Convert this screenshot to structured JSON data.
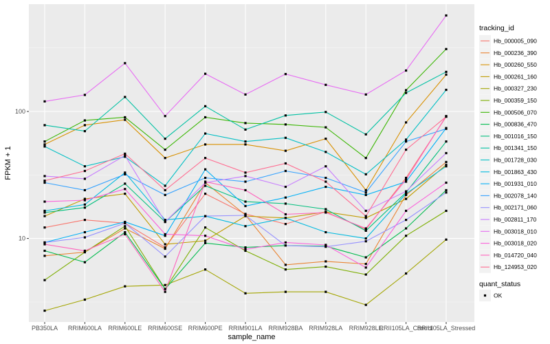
{
  "chart_data": {
    "type": "line",
    "xlabel": "sample_name",
    "ylabel": "FPKM + 1",
    "y_scale": "log10",
    "ylim": [
      2.2,
      700
    ],
    "y_ticks": [
      {
        "value": 10,
        "label": "10"
      },
      {
        "value": 100,
        "label": "100"
      }
    ],
    "grid": true,
    "legend_position": "right",
    "categories": [
      "PB350LA",
      "RRIM600LA",
      "RRIM600LE",
      "RRIM600SE",
      "RRIM600PE",
      "RRIM901LA",
      "RRIM928BA",
      "RRIM928LA",
      "RRIM928LE",
      "RRII105LA_Control",
      "RRII105LA_Stressed"
    ],
    "legend_color": {
      "title": "tracking_id",
      "entries": [
        "Hb_000005_090",
        "Hb_000236_390",
        "Hb_000260_550",
        "Hb_000261_160",
        "Hb_000327_230",
        "Hb_000359_150",
        "Hb_000506_070",
        "Hb_000836_470",
        "Hb_001016_150",
        "Hb_001341_150",
        "Hb_001728_030",
        "Hb_001863_430",
        "Hb_001931_010",
        "Hb_002078_140",
        "Hb_002171_060",
        "Hb_002811_170",
        "Hb_003018_010",
        "Hb_003018_020",
        "Hb_014720_040",
        "Hb_124953_020"
      ]
    },
    "legend_shape": {
      "title": "quant_status",
      "entries": [
        "OK"
      ]
    },
    "series": [
      {
        "name": "Hb_000005_090",
        "color": "#F8766D",
        "values": [
          12.2,
          14.0,
          13.2,
          8.5,
          22.5,
          15.6,
          13.0,
          16.2,
          11.8,
          30.0,
          91.0
        ]
      },
      {
        "name": "Hb_000236_390",
        "color": "#EA8331",
        "values": [
          7.3,
          7.8,
          12.0,
          8.3,
          27.5,
          15.3,
          6.2,
          6.6,
          6.3,
          22.0,
          40.0
        ]
      },
      {
        "name": "Hb_000260_550",
        "color": "#D89000",
        "values": [
          55.0,
          78.0,
          86.0,
          43.0,
          55.0,
          55.0,
          49.0,
          61.0,
          24.0,
          82.0,
          195.0
        ]
      },
      {
        "name": "Hb_000261_160",
        "color": "#C09B00",
        "values": [
          15.0,
          20.5,
          22.5,
          9.0,
          9.6,
          15.0,
          14.5,
          16.2,
          14.5,
          20.5,
          38.0
        ]
      },
      {
        "name": "Hb_000327_230",
        "color": "#A3A500",
        "values": [
          2.7,
          3.3,
          4.2,
          4.3,
          5.7,
          3.7,
          3.8,
          3.8,
          3.0,
          5.3,
          9.8
        ]
      },
      {
        "name": "Hb_000359_150",
        "color": "#7CAE00",
        "values": [
          4.7,
          7.8,
          12.5,
          4.0,
          12.2,
          8.0,
          5.7,
          6.0,
          5.2,
          10.5,
          16.5
        ]
      },
      {
        "name": "Hb_000506_070",
        "color": "#39B600",
        "values": [
          58.0,
          85.0,
          90.0,
          50.0,
          90.0,
          81.0,
          79.0,
          75.0,
          43.0,
          147.0,
          310.0
        ]
      },
      {
        "name": "Hb_000836_470",
        "color": "#00BB4E",
        "values": [
          8.0,
          6.5,
          11.2,
          4.0,
          9.2,
          8.5,
          8.8,
          8.7,
          7.1,
          12.0,
          24.0
        ]
      },
      {
        "name": "Hb_001016_150",
        "color": "#00BF7D",
        "values": [
          16.0,
          17.5,
          27.0,
          13.5,
          26.0,
          19.5,
          18.8,
          17.0,
          11.5,
          23.0,
          58.0
        ]
      },
      {
        "name": "Hb_001341_150",
        "color": "#00C1A3",
        "values": [
          78.0,
          70.0,
          130.0,
          61.0,
          110.0,
          72.0,
          93.0,
          99.0,
          66.0,
          140.0,
          205.0
        ]
      },
      {
        "name": "Hb_001728_030",
        "color": "#00BFC4",
        "values": [
          53.0,
          37.0,
          44.0,
          26.0,
          67.0,
          58.0,
          62.0,
          48.0,
          32.0,
          60.0,
          148.0
        ]
      },
      {
        "name": "Hb_001863_430",
        "color": "#00BAE0",
        "values": [
          16.5,
          18.5,
          33.0,
          14.0,
          15.0,
          12.5,
          14.5,
          11.2,
          10.0,
          22.5,
          37.0
        ]
      },
      {
        "name": "Hb_001931_010",
        "color": "#00B0F6",
        "values": [
          9.3,
          11.2,
          13.5,
          10.5,
          35.0,
          18.0,
          21.0,
          25.5,
          22.0,
          28.0,
          74.0
        ]
      },
      {
        "name": "Hb_002078_140",
        "color": "#35A2FF",
        "values": [
          27.5,
          24.0,
          32.0,
          22.0,
          30.0,
          28.0,
          34.0,
          30.0,
          23.0,
          58.0,
          73.0
        ]
      },
      {
        "name": "Hb_002171_060",
        "color": "#9590FF",
        "values": [
          9.3,
          10.2,
          13.2,
          7.2,
          15.0,
          15.2,
          8.8,
          8.6,
          9.5,
          14.0,
          23.0
        ]
      },
      {
        "name": "Hb_002811_170",
        "color": "#C77CFF",
        "values": [
          31.0,
          29.5,
          45.0,
          13.5,
          27.5,
          31.0,
          25.5,
          37.0,
          16.5,
          23.5,
          47.0
        ]
      },
      {
        "name": "Hb_003018_010",
        "color": "#E76BF3",
        "values": [
          120.0,
          135.0,
          240.0,
          92.0,
          198.0,
          136.0,
          197.0,
          162.0,
          136.0,
          210.0,
          570.0
        ]
      },
      {
        "name": "Hb_003018_020",
        "color": "#FA62DB",
        "values": [
          19.5,
          20.0,
          24.5,
          10.8,
          10.5,
          8.2,
          9.3,
          8.9,
          5.9,
          16.5,
          27.5
        ]
      },
      {
        "name": "Hb_014720_040",
        "color": "#FF62BC",
        "values": [
          9.0,
          8.0,
          10.8,
          3.8,
          28.0,
          24.0,
          15.5,
          16.0,
          12.0,
          29.0,
          92.0
        ]
      },
      {
        "name": "Hb_124953_020",
        "color": "#FF6C91",
        "values": [
          28.5,
          34.0,
          46.5,
          24.0,
          43.0,
          33.0,
          39.0,
          28.0,
          15.0,
          50.0,
          91.0
        ]
      }
    ]
  }
}
